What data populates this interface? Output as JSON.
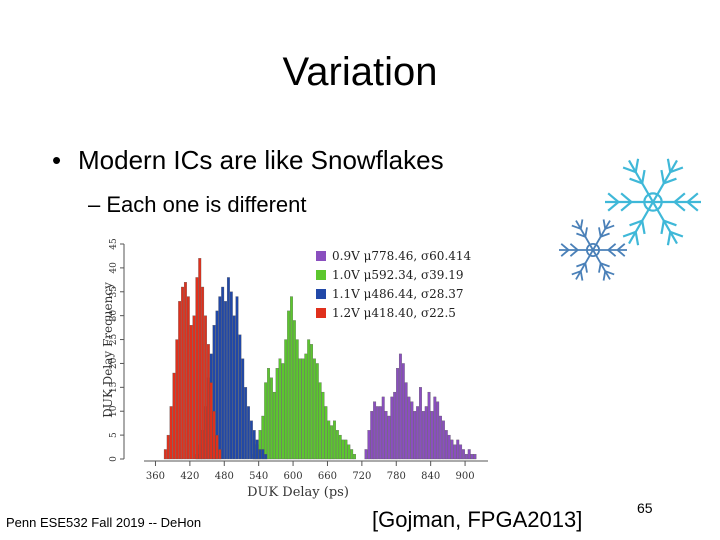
{
  "slide": {
    "title": "Variation",
    "bullet": "Modern ICs are like Snowflakes",
    "subbullet": "– Each one is different",
    "footer": "Penn ESE532 Fall 2019 -- DeHon",
    "citation": "[Gojman, FPGA2013]",
    "page_number": "65"
  },
  "chart_data": {
    "type": "histogram",
    "xlabel": "DUK Delay (ps)",
    "ylabel": "DUK Delay Frequency",
    "xlim": [
      340,
      940
    ],
    "ylim": [
      0,
      45
    ],
    "xticks": [
      360,
      420,
      480,
      540,
      600,
      660,
      720,
      780,
      840,
      900
    ],
    "yticks": [
      0,
      5,
      10,
      15,
      20,
      25,
      30,
      35,
      40,
      45
    ],
    "bin_width": 5,
    "legend_position": "top-right",
    "series": [
      {
        "name": "0.9V",
        "legend": "0.9V  μ778.46, σ60.414",
        "color": "#8a4fbf",
        "x": [
          725,
          730,
          735,
          740,
          745,
          750,
          755,
          760,
          765,
          770,
          775,
          780,
          785,
          790,
          795,
          800,
          805,
          810,
          815,
          820,
          825,
          830,
          835,
          840,
          845,
          850,
          855,
          860,
          865,
          870,
          875,
          880,
          885,
          890,
          895,
          900,
          905,
          910,
          915
        ],
        "counts": [
          2,
          6,
          10,
          12,
          11,
          11,
          13,
          10,
          9,
          13,
          14,
          19,
          22,
          20,
          16,
          13,
          12,
          10,
          11,
          15,
          10,
          11,
          14,
          10,
          13,
          12,
          9,
          8,
          6,
          5,
          4,
          3,
          4,
          3,
          2,
          1,
          2,
          1,
          1
        ]
      },
      {
        "name": "1.0V",
        "legend": "1.0V  μ592.34, σ39.19",
        "color": "#5cc72e",
        "x": [
          530,
          535,
          540,
          545,
          550,
          555,
          560,
          565,
          570,
          575,
          580,
          585,
          590,
          595,
          600,
          605,
          610,
          615,
          620,
          625,
          630,
          635,
          640,
          645,
          650,
          655,
          660,
          665,
          670,
          675,
          680,
          685,
          690,
          695,
          700,
          705
        ],
        "counts": [
          1,
          3,
          6,
          9,
          16,
          19,
          17,
          14,
          19,
          21,
          20,
          25,
          31,
          34,
          29,
          25,
          21,
          21,
          22,
          25,
          24,
          21,
          20,
          16,
          14,
          11,
          8,
          7,
          8,
          6,
          5,
          4,
          4,
          3,
          2,
          1
        ]
      },
      {
        "name": "1.1V",
        "legend": "1.1V  μ486.44, σ28.37",
        "color": "#2148a8",
        "x": [
          430,
          435,
          440,
          445,
          450,
          455,
          460,
          465,
          470,
          475,
          480,
          485,
          490,
          495,
          500,
          505,
          510,
          515,
          520,
          525,
          530,
          535,
          540,
          545,
          550
        ],
        "counts": [
          1,
          3,
          6,
          11,
          17,
          22,
          28,
          31,
          34,
          36,
          33,
          38,
          35,
          30,
          34,
          26,
          21,
          15,
          11,
          8,
          6,
          4,
          2,
          2,
          1
        ]
      },
      {
        "name": "1.2V",
        "legend": "1.2V  μ418.40, σ22.5",
        "color": "#e0301c",
        "x": [
          375,
          380,
          385,
          390,
          395,
          400,
          405,
          410,
          415,
          420,
          425,
          430,
          435,
          440,
          445,
          450,
          455,
          460,
          465,
          470
        ],
        "counts": [
          2,
          5,
          11,
          18,
          25,
          33,
          36,
          37,
          34,
          28,
          30,
          38,
          42,
          36,
          30,
          24,
          16,
          10,
          5,
          2
        ]
      }
    ]
  }
}
